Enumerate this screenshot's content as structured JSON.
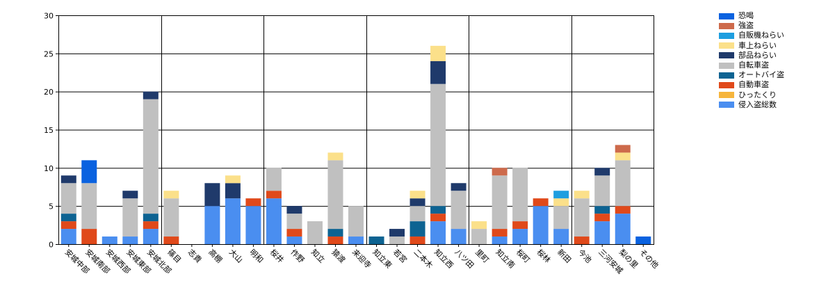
{
  "chart_data": {
    "type": "bar",
    "stacked": true,
    "ylim": [
      0,
      30
    ],
    "yticks": [
      0,
      5,
      10,
      15,
      20,
      25,
      30
    ],
    "grid": true,
    "legend_position": "right",
    "categories": [
      "安城中部",
      "安城南部",
      "安城西部",
      "安城東部",
      "安城北部",
      "篠目",
      "志貴",
      "高棚",
      "大山",
      "明和",
      "桜井",
      "作野",
      "知立",
      "猿渡",
      "来迎寺",
      "知立東",
      "若宮",
      "二本木",
      "知立西",
      "八ツ田",
      "里町",
      "知立南",
      "桜町",
      "桜林",
      "新田",
      "今池",
      "三河安城",
      "梨の里",
      "その他"
    ],
    "series": [
      {
        "name": "侵入盗総数",
        "color": "#4a8ef0",
        "values": [
          2,
          0,
          1,
          1,
          2,
          0,
          0,
          5,
          6,
          5,
          6,
          1,
          0,
          0,
          1,
          0,
          0,
          0,
          3,
          2,
          0,
          1,
          2,
          5,
          2,
          0,
          3,
          4,
          0
        ]
      },
      {
        "name": "ひったくり",
        "color": "#f6b53c",
        "values": [
          0,
          0,
          0,
          0,
          0,
          0,
          0,
          0,
          0,
          0,
          0,
          0,
          0,
          0,
          0,
          0,
          0,
          0,
          0,
          0,
          0,
          0,
          0,
          0,
          0,
          0,
          0,
          0,
          0
        ]
      },
      {
        "name": "自動車盗",
        "color": "#e0491a",
        "values": [
          1,
          2,
          0,
          0,
          1,
          1,
          0,
          0,
          0,
          1,
          1,
          1,
          0,
          1,
          0,
          0,
          0,
          1,
          1,
          0,
          0,
          1,
          1,
          1,
          0,
          1,
          1,
          1,
          0
        ]
      },
      {
        "name": "オートバイ盗",
        "color": "#0d6392",
        "values": [
          1,
          0,
          0,
          0,
          1,
          0,
          0,
          0,
          0,
          0,
          0,
          0,
          0,
          1,
          0,
          1,
          0,
          2,
          1,
          0,
          0,
          0,
          0,
          0,
          0,
          0,
          1,
          0,
          0
        ]
      },
      {
        "name": "自転車盗",
        "color": "#c0c0c0",
        "values": [
          4,
          6,
          0,
          5,
          15,
          5,
          0,
          0,
          0,
          0,
          3,
          2,
          3,
          9,
          4,
          0,
          1,
          2,
          16,
          5,
          2,
          7,
          7,
          0,
          3,
          5,
          4,
          6,
          0
        ]
      },
      {
        "name": "部品ねらい",
        "color": "#1f3a6b",
        "values": [
          1,
          0,
          0,
          1,
          1,
          0,
          0,
          3,
          2,
          0,
          0,
          1,
          0,
          0,
          0,
          0,
          1,
          1,
          3,
          1,
          0,
          0,
          0,
          0,
          0,
          0,
          1,
          0,
          0
        ]
      },
      {
        "name": "車上ねらい",
        "color": "#fbe08a",
        "values": [
          0,
          0,
          0,
          0,
          0,
          1,
          0,
          0,
          1,
          0,
          0,
          0,
          0,
          1,
          0,
          0,
          0,
          1,
          2,
          0,
          1,
          0,
          0,
          0,
          1,
          1,
          0,
          1,
          0
        ]
      },
      {
        "name": "自販機ねらい",
        "color": "#1e9ee0",
        "values": [
          0,
          0,
          0,
          0,
          0,
          0,
          0,
          0,
          0,
          0,
          0,
          0,
          0,
          0,
          0,
          0,
          0,
          0,
          0,
          0,
          0,
          0,
          0,
          0,
          1,
          0,
          0,
          0,
          0
        ]
      },
      {
        "name": "強盗",
        "color": "#cd6a4b",
        "values": [
          0,
          0,
          0,
          0,
          0,
          0,
          0,
          0,
          0,
          0,
          0,
          0,
          0,
          0,
          0,
          0,
          0,
          0,
          0,
          0,
          0,
          1,
          0,
          0,
          0,
          0,
          0,
          1,
          0
        ]
      },
      {
        "name": "恐喝",
        "color": "#0a62e0",
        "values": [
          0,
          3,
          0,
          0,
          0,
          0,
          0,
          0,
          0,
          0,
          0,
          0,
          0,
          0,
          0,
          0,
          0,
          0,
          0,
          0,
          0,
          0,
          0,
          0,
          0,
          0,
          0,
          0,
          1
        ]
      }
    ]
  }
}
